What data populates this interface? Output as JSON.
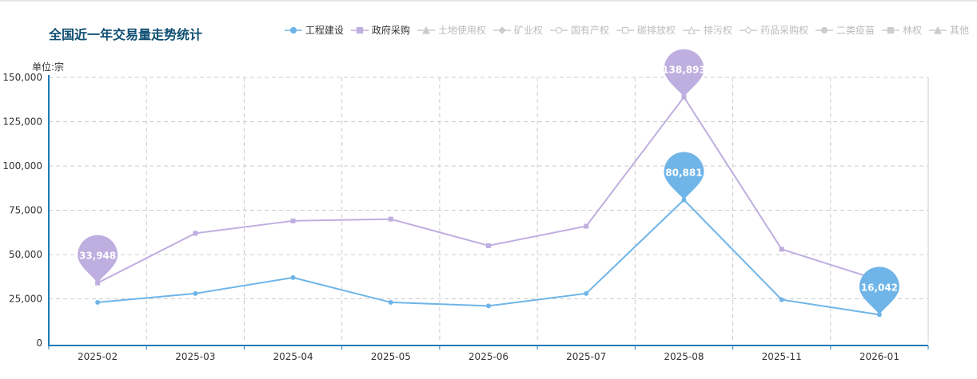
{
  "header": {
    "title": "全国近一年交易量走势统计",
    "unit": "单位:宗"
  },
  "legend": [
    {
      "label": "工程建设",
      "marker": "circle",
      "color": "#6fb5e8",
      "active": true
    },
    {
      "label": "政府采购",
      "marker": "square",
      "color": "#bfaee0",
      "active": true
    },
    {
      "label": "土地使用权",
      "marker": "triangle",
      "color": "#cccccc",
      "active": false
    },
    {
      "label": "矿业权",
      "marker": "diamond",
      "color": "#cccccc",
      "active": false
    },
    {
      "label": "国有产权",
      "marker": "empty-circle",
      "color": "#cccccc",
      "active": false
    },
    {
      "label": "碳排放权",
      "marker": "empty-square",
      "color": "#cccccc",
      "active": false
    },
    {
      "label": "排污权",
      "marker": "empty-triangle",
      "color": "#cccccc",
      "active": false
    },
    {
      "label": "药品采购权",
      "marker": "empty-diamond",
      "color": "#cccccc",
      "active": false
    },
    {
      "label": "二类疫苗",
      "marker": "circle",
      "color": "#cccccc",
      "active": false
    },
    {
      "label": "林权",
      "marker": "square",
      "color": "#cccccc",
      "active": false
    },
    {
      "label": "其他",
      "marker": "triangle",
      "color": "#cccccc",
      "active": false
    }
  ],
  "chart_data": {
    "type": "line",
    "categories": [
      "2025-02",
      "2025-03",
      "2025-04",
      "2025-05",
      "2025-06",
      "2025-07",
      "2025-08",
      "2025-11",
      "2026-01"
    ],
    "ylim": [
      0,
      150000
    ],
    "yticks": [
      0,
      25000,
      50000,
      75000,
      100000,
      125000,
      150000
    ],
    "ytick_labels": [
      "0",
      "25,000",
      "50,000",
      "75,000",
      "100,000",
      "125,000",
      "150,000"
    ],
    "ylabel": "单位:宗",
    "grid": true,
    "legend_position": "top-right",
    "series": [
      {
        "name": "工程建设",
        "color": "#6fb5e8",
        "marker": "circle",
        "values": [
          23000,
          28000,
          37000,
          23000,
          21000,
          28000,
          80881,
          24500,
          16042
        ],
        "pins": [
          {
            "index": 6,
            "label": "80,881"
          },
          {
            "index": 8,
            "label": "16,042"
          }
        ]
      },
      {
        "name": "政府采购",
        "color": "#bfaee0",
        "marker": "square",
        "values": [
          33948,
          62000,
          69000,
          70000,
          55000,
          66000,
          138893,
          53000,
          35500
        ],
        "pins": [
          {
            "index": 0,
            "label": "33,948"
          },
          {
            "index": 6,
            "label": "138,893"
          }
        ]
      }
    ]
  }
}
